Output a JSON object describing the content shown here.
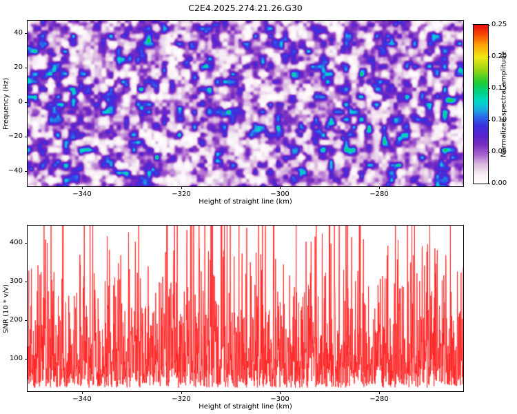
{
  "figure": {
    "title": "C2E4.2025.274.21.26.G30",
    "background": "#ffffff",
    "text_color": "#000000"
  },
  "chart_data": [
    {
      "type": "heatmap",
      "panel": "spectrogram",
      "title": "",
      "xlabel": "Height of straight line (km)",
      "ylabel": "Frequency (Hz)",
      "xlim": [
        -351,
        -263
      ],
      "ylim": [
        -49,
        47
      ],
      "xticks": [
        -340,
        -320,
        -300,
        -280
      ],
      "xtick_labels": [
        "−340",
        "−320",
        "−300",
        "−280"
      ],
      "yticks": [
        40,
        20,
        0,
        -20,
        -40
      ],
      "ytick_labels": [
        "40",
        "20",
        "0",
        "−20",
        "−40"
      ],
      "grid": false,
      "legend": "none",
      "colorbar": {
        "label": "Normalized spectral amplitude",
        "position": "right",
        "vmin": 0.0,
        "vmax": 0.25,
        "ticks": [
          0.0,
          0.05,
          0.1,
          0.15,
          0.2,
          0.25
        ],
        "tick_labels": [
          "0.00",
          "0.05",
          "0.10",
          "0.15",
          "0.20",
          "0.25"
        ],
        "colormap_stops": [
          [
            0.0,
            "#ffffff"
          ],
          [
            0.015,
            "#f6ecf4"
          ],
          [
            0.03,
            "#dbb8e0"
          ],
          [
            0.045,
            "#a963cf"
          ],
          [
            0.06,
            "#7a2fc0"
          ],
          [
            0.075,
            "#5a23cf"
          ],
          [
            0.09,
            "#3b2fe0"
          ],
          [
            0.105,
            "#2a6ae8"
          ],
          [
            0.118,
            "#19b4de"
          ],
          [
            0.13,
            "#00d8c8"
          ],
          [
            0.145,
            "#00d080"
          ],
          [
            0.16,
            "#22cc33"
          ],
          [
            0.18,
            "#9ed714"
          ],
          [
            0.2,
            "#f2e713"
          ],
          [
            0.22,
            "#fe9b07"
          ],
          [
            0.235,
            "#f84a05"
          ],
          [
            0.25,
            "#e40b0b"
          ]
        ]
      },
      "noise_field": {
        "seed": 1337,
        "cell1": 11,
        "cell2": 5.5,
        "w1": 0.75,
        "w2": 0.35,
        "norm": 1.1,
        "exponent": 1.9,
        "amplitude": 0.165
      },
      "hotspots": [
        {
          "xf": 0.973,
          "yf": 0.479,
          "amp": 0.145,
          "sx": 8,
          "sy": 5
        },
        {
          "xf": 0.652,
          "yf": 0.508,
          "amp": 0.07,
          "sx": 9,
          "sy": 6
        },
        {
          "xf": 0.27,
          "yf": 0.12,
          "amp": 0.045,
          "sx": 6,
          "sy": 5
        },
        {
          "xf": 0.41,
          "yf": 0.55,
          "amp": 0.04,
          "sx": 6,
          "sy": 5
        },
        {
          "xf": 0.085,
          "yf": 0.3,
          "amp": 0.045,
          "sx": 6,
          "sy": 5
        },
        {
          "xf": 0.56,
          "yf": 0.8,
          "amp": 0.04,
          "sx": 6,
          "sy": 5
        }
      ]
    },
    {
      "type": "line",
      "panel": "snr",
      "title": "",
      "xlabel": "Height of straight line (km)",
      "ylabel": "SNR (10 * v/v)",
      "xlim": [
        -351,
        -263
      ],
      "ylim": [
        16,
        444
      ],
      "xticks": [
        -340,
        -320,
        -300,
        -280
      ],
      "xtick_labels": [
        "−340",
        "−320",
        "−300",
        "−280"
      ],
      "yticks": [
        100,
        200,
        300,
        400
      ],
      "ytick_labels": [
        "100",
        "200",
        "300",
        "400"
      ],
      "grid": false,
      "legend": "none",
      "line_color": "#ff2020",
      "line_width": 0.9,
      "noise_line": {
        "seed": 2025,
        "n_points": 1800,
        "base": 25,
        "scale": 112,
        "clip": 445
      }
    }
  ]
}
